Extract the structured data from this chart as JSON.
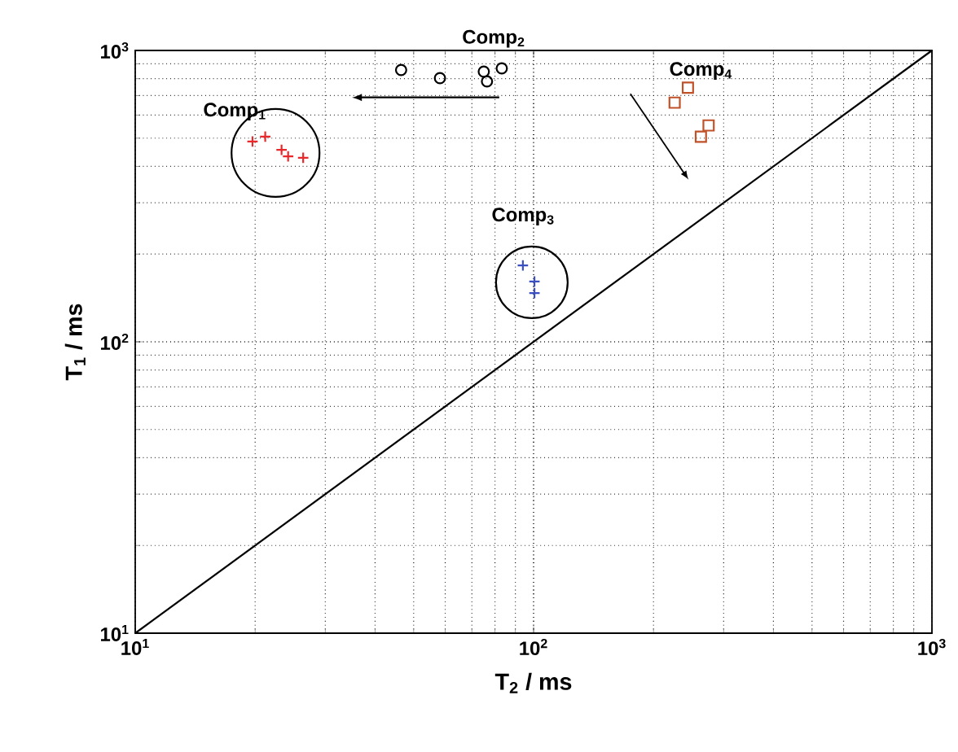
{
  "chart_data": {
    "type": "scatter",
    "xlabel": "T$_{2}$ / ms",
    "ylabel": "T$_{1}$ / ms",
    "log": "xy",
    "grid": true,
    "xlim": [
      10,
      1000
    ],
    "ylim": [
      10,
      1000
    ],
    "xticks": [
      {
        "value": 10,
        "label": "10$^{1}$"
      },
      {
        "value": 100,
        "label": "10$^{2}$"
      },
      {
        "value": 1000,
        "label": "10$^{3}$"
      }
    ],
    "yticks": [
      {
        "value": 10,
        "label": "10$^{1}$"
      },
      {
        "value": 100,
        "label": "10$^{2}$"
      },
      {
        "value": 1000,
        "label": "10$^{3}$"
      }
    ],
    "series": [
      {
        "color": "#e8282a",
        "marker": "cross",
        "x": [
          19.7,
          21.2,
          23.3,
          24.2,
          26.4
        ],
        "values": [
          487,
          506,
          456,
          433,
          428
        ]
      },
      {
        "color": "#000000",
        "marker": "circle",
        "x": [
          46.5,
          58.2,
          75.0,
          76.4,
          83.2
        ],
        "values": [
          857,
          804,
          846,
          783,
          868
        ]
      },
      {
        "color": "#3a4fc0",
        "marker": "cross",
        "x": [
          94,
          100.5,
          100.5
        ],
        "values": [
          183,
          161,
          147
        ]
      },
      {
        "color": "#c0522a",
        "marker": "square",
        "x": [
          244,
          226,
          275,
          263
        ],
        "values": [
          745,
          662,
          553,
          506
        ]
      },
      {
        "type": "line",
        "color": "#000000",
        "marker": "none",
        "line_style": "solid",
        "x": [
          10,
          1000
        ],
        "values": [
          10,
          1000
        ]
      }
    ],
    "annotations": [
      "Comp$_{1}$",
      "Comp$_{2}$",
      "Comp$_{3}$",
      "Comp$_{4}$"
    ]
  }
}
